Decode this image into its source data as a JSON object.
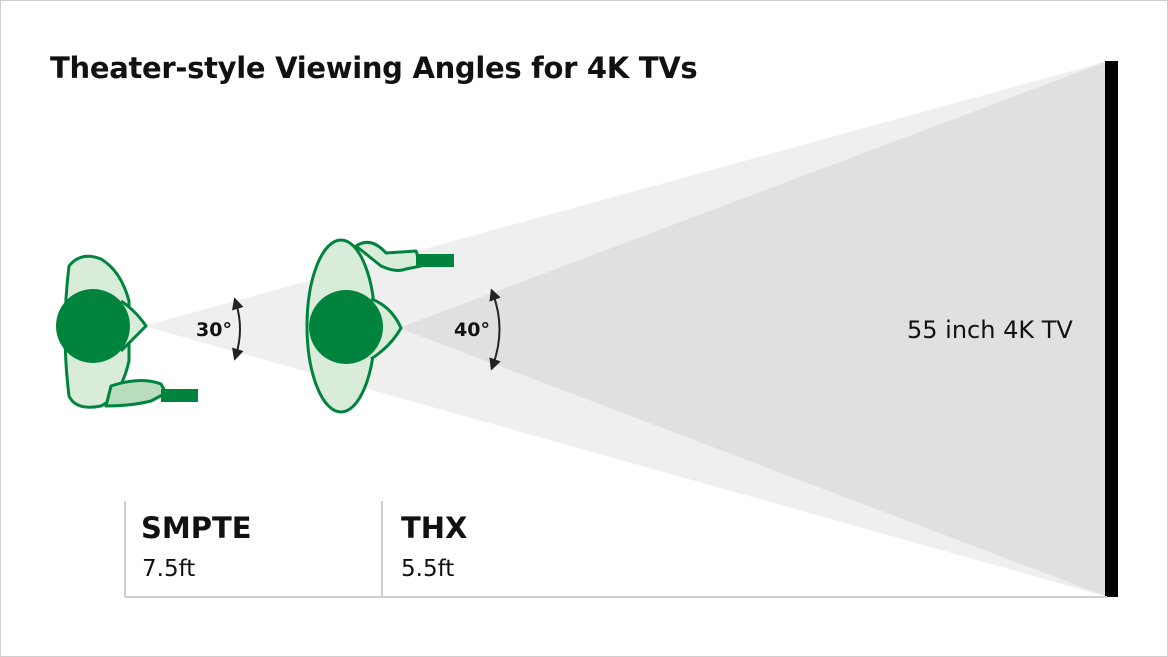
{
  "title": "Theater-style Viewing Angles for 4K TVs",
  "tv_label": "55 inch 4K TV",
  "colors": {
    "green": "#00843d",
    "light_green": "#d8ecd9",
    "outer_cone": "#efefef",
    "inner_cone": "#e0e0e0",
    "tv": "#000000"
  },
  "viewers": [
    {
      "standard": "SMPTE",
      "distance": "7.5ft",
      "angle": "30°"
    },
    {
      "standard": "THX",
      "distance": "5.5ft",
      "angle": "40°"
    }
  ]
}
